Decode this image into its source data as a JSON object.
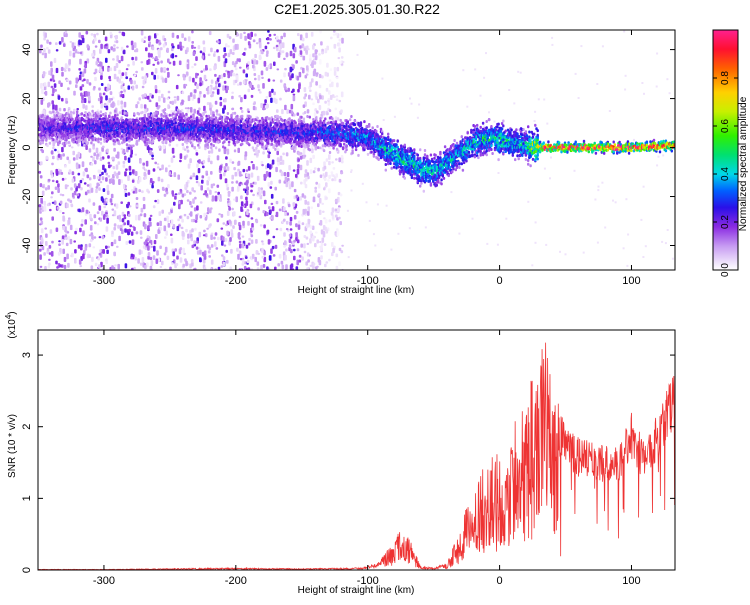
{
  "title": "C2E1.2025.305.01.30.R22",
  "colorbar": {
    "label": "Normalized spectral amplitude",
    "ticks": [
      "0.0",
      "0.2",
      "0.4",
      "0.6",
      "0.8"
    ],
    "tick_values": [
      0.0,
      0.2,
      0.4,
      0.6,
      0.8
    ],
    "range": [
      0,
      1
    ]
  },
  "chart_data": [
    {
      "type": "heatmap",
      "xlabel": "Height of straight line (km)",
      "ylabel": "Frequency (Hz)",
      "xlim": [
        -350,
        133
      ],
      "ylim": [
        -50,
        48
      ],
      "x_ticks": [
        -300,
        -200,
        -100,
        0,
        100
      ],
      "x_tick_labels": [
        "-300",
        "-200",
        "-100",
        "0",
        "100"
      ],
      "y_ticks": [
        -40,
        -20,
        0,
        20,
        40
      ],
      "y_tick_labels": [
        "-40",
        "-20",
        "0",
        "20",
        "40"
      ],
      "signal_track": {
        "x": [
          -350,
          -300,
          -250,
          -200,
          -150,
          -130,
          -110,
          -100,
          -90,
          -80,
          -70,
          -60,
          -50,
          -40,
          -30,
          -20,
          -10,
          0,
          10,
          20,
          30,
          60,
          100,
          133
        ],
        "center": [
          8,
          8,
          8,
          7,
          6,
          6,
          5,
          4,
          0,
          -3,
          -6,
          -9,
          -10,
          -6,
          -2,
          2,
          4,
          3,
          2,
          1,
          0,
          0,
          0,
          1
        ],
        "peak_amplitude": [
          0.25,
          0.3,
          0.3,
          0.3,
          0.3,
          0.35,
          0.4,
          0.4,
          0.45,
          0.5,
          0.5,
          0.5,
          0.45,
          0.45,
          0.45,
          0.5,
          0.5,
          0.5,
          0.45,
          0.5,
          0.9,
          0.95,
          0.95,
          0.85
        ]
      },
      "noise_region_x": [
        -350,
        -130
      ]
    },
    {
      "type": "line",
      "xlabel": "Height of straight line (km)",
      "ylabel": "SNR (10 * v/v)",
      "multiplier": "(x10",
      "multiplier_exp": "4",
      "multiplier_close": ")",
      "xlim": [
        -350,
        133
      ],
      "ylim": [
        0,
        3.35
      ],
      "x_ticks": [
        -300,
        -200,
        -100,
        0,
        100
      ],
      "x_tick_labels": [
        "-300",
        "-200",
        "-100",
        "0",
        "100"
      ],
      "y_ticks": [
        0,
        1,
        2,
        3
      ],
      "y_tick_labels": [
        "0",
        "1",
        "2",
        "3"
      ],
      "color": "#ee3333",
      "series": [
        {
          "x": [
            -350,
            -300,
            -250,
            -200,
            -150,
            -110,
            -100,
            -90,
            -80,
            -75,
            -70,
            -65,
            -60,
            -50,
            -40,
            -30,
            -20,
            -10,
            0,
            10,
            20,
            30,
            35,
            40,
            50,
            60,
            70,
            80,
            90,
            100,
            110,
            120,
            133
          ],
          "envelope": [
            0.01,
            0.01,
            0.02,
            0.03,
            0.02,
            0.03,
            0.05,
            0.15,
            0.45,
            0.55,
            0.5,
            0.3,
            0.05,
            0.03,
            0.1,
            0.6,
            1.2,
            1.5,
            1.7,
            2.0,
            2.5,
            3.0,
            3.3,
            2.6,
            2.0,
            1.85,
            1.8,
            1.75,
            1.75,
            2.2,
            1.8,
            2.2,
            2.8
          ]
        }
      ]
    }
  ]
}
